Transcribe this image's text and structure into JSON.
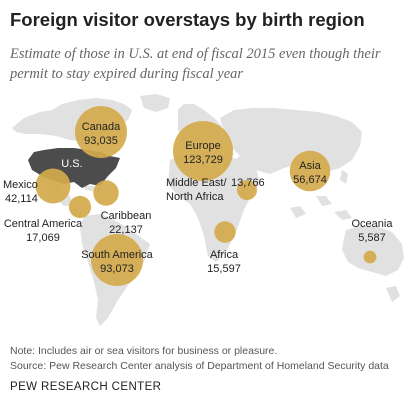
{
  "header": {
    "title": "Foreign visitor overstays by birth region",
    "subtitle": "Estimate of those in U.S. at end of fiscal 2015 even though their permit to stay expired during fiscal year"
  },
  "chart_data": {
    "type": "bubble-map",
    "title": "Foreign visitor overstays by birth region",
    "subtitle": "Estimate of those in U.S. at end of fiscal 2015 even though their permit to stay expired during fiscal year",
    "highlight_label": "U.S.",
    "regions": [
      {
        "name": "Canada",
        "value": 93035,
        "label": "93,035"
      },
      {
        "name": "Europe",
        "value": 123729,
        "label": "123,729"
      },
      {
        "name": "Asia",
        "value": 56674,
        "label": "56,674"
      },
      {
        "name": "Mexico",
        "value": 42114,
        "label": "42,114"
      },
      {
        "name": "Central America",
        "value": 17069,
        "label": "17,069"
      },
      {
        "name": "Caribbean",
        "value": 22137,
        "label": "22,137"
      },
      {
        "name": "South America",
        "value": 93073,
        "label": "93,073"
      },
      {
        "name": "Middle East/\nNorth Africa",
        "value": 13766,
        "label": "13,766"
      },
      {
        "name": "Africa",
        "value": 15597,
        "label": "15,597"
      },
      {
        "name": "Oceania",
        "value": 5587,
        "label": "5,587"
      }
    ],
    "colors": {
      "bubble": "#d4aa4c",
      "land": "#e1e1e1",
      "highlight": "#4c4c4c",
      "text": "#222222",
      "highlight_text": "#ffffff"
    }
  },
  "footer": {
    "note": "Note: Includes air or sea visitors for business or pleasure.",
    "source": "Source: Pew Research Center analysis of Department of Homeland Security data",
    "org": "PEW RESEARCH CENTER"
  }
}
